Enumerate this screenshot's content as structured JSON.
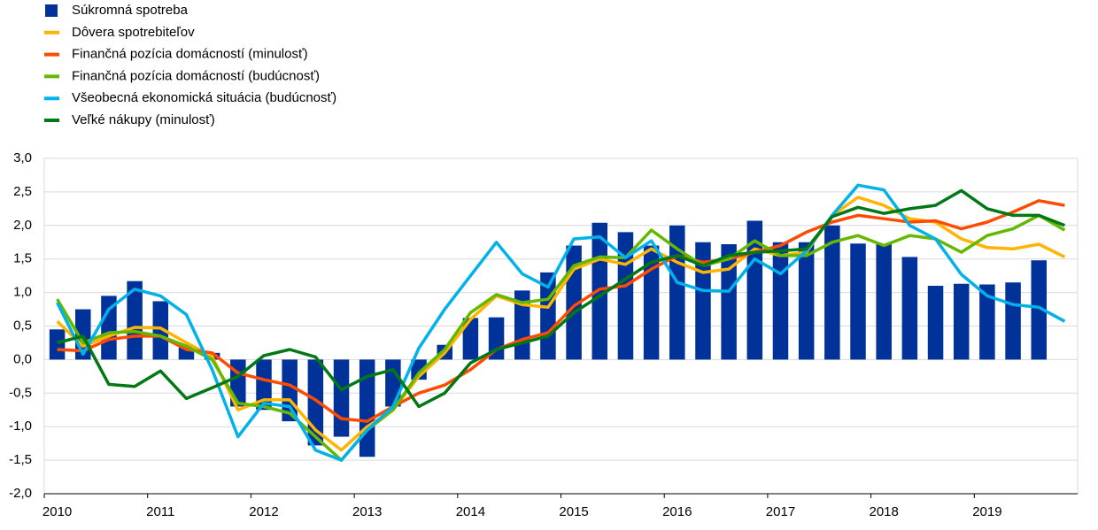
{
  "chart_data": {
    "type": "combo",
    "categories": [
      "2010",
      null,
      null,
      null,
      "2011",
      null,
      null,
      null,
      "2012",
      null,
      null,
      null,
      "2013",
      null,
      null,
      null,
      "2014",
      null,
      null,
      null,
      "2015",
      null,
      null,
      null,
      "2016",
      null,
      null,
      null,
      "2017",
      null,
      null,
      null,
      "2018",
      null,
      null,
      null,
      "2019",
      null,
      null,
      null
    ],
    "ylim": [
      -2,
      3
    ],
    "yticks": [
      {
        "value": -2,
        "label": "-2,0"
      },
      {
        "value": -1.5,
        "label": "-1,5"
      },
      {
        "value": -1,
        "label": "-1,0"
      },
      {
        "value": -0.5,
        "label": "-0,5"
      },
      {
        "value": 0,
        "label": "0,0"
      },
      {
        "value": 0.5,
        "label": "0,5"
      },
      {
        "value": 1,
        "label": "1,0"
      },
      {
        "value": 1.5,
        "label": "1,5"
      },
      {
        "value": 2,
        "label": "2,0"
      },
      {
        "value": 2.5,
        "label": "2,5"
      },
      {
        "value": 3,
        "label": "3,0"
      }
    ],
    "grid": true,
    "legend": "top-left",
    "series": [
      {
        "name": "Súkromná spotreba",
        "type": "bar",
        "color": "#003299",
        "values": [
          0.45,
          0.75,
          0.95,
          1.17,
          0.87,
          0.2,
          0.1,
          -0.7,
          -0.75,
          -0.92,
          -1.28,
          -1.15,
          -1.45,
          -0.7,
          -0.3,
          0.22,
          0.62,
          0.63,
          1.03,
          1.3,
          1.7,
          2.04,
          1.9,
          1.7,
          2.0,
          1.75,
          1.72,
          2.07,
          1.75,
          1.75,
          2.0,
          1.73,
          1.72,
          1.53,
          1.1,
          1.13,
          1.12,
          1.15,
          1.48,
          null
        ]
      },
      {
        "name": "Dôvera spotrebiteľov",
        "type": "line",
        "color": "#ffb400",
        "values": [
          0.57,
          0.2,
          0.35,
          0.48,
          0.47,
          0.25,
          0.05,
          -0.75,
          -0.6,
          -0.6,
          -1.05,
          -1.35,
          -1.0,
          -0.75,
          -0.25,
          0.1,
          0.6,
          0.95,
          0.82,
          0.78,
          1.35,
          1.5,
          1.42,
          1.65,
          1.45,
          1.3,
          1.35,
          1.65,
          1.55,
          1.6,
          2.15,
          2.42,
          2.3,
          2.1,
          2.05,
          1.8,
          1.67,
          1.65,
          1.72,
          1.53
        ]
      },
      {
        "name": "Finančná pozícia domácností (minulosť)",
        "type": "line",
        "color": "#ff4b00",
        "values": [
          0.15,
          0.13,
          0.3,
          0.35,
          0.35,
          0.15,
          0.1,
          -0.2,
          -0.3,
          -0.38,
          -0.6,
          -0.88,
          -0.92,
          -0.7,
          -0.5,
          -0.38,
          -0.15,
          0.15,
          0.3,
          0.4,
          0.8,
          1.05,
          1.1,
          1.35,
          1.55,
          1.45,
          1.5,
          1.6,
          1.7,
          1.9,
          2.05,
          2.15,
          2.1,
          2.05,
          2.07,
          1.95,
          2.05,
          2.2,
          2.37,
          2.3
        ]
      },
      {
        "name": "Finančná pozícia domácností (budúcnosť)",
        "type": "line",
        "color": "#65b800",
        "values": [
          0.9,
          0.25,
          0.4,
          0.42,
          0.35,
          0.2,
          0.0,
          -0.65,
          -0.7,
          -0.8,
          -1.15,
          -1.5,
          -1.05,
          -0.75,
          -0.2,
          0.15,
          0.7,
          0.97,
          0.85,
          0.9,
          1.4,
          1.53,
          1.52,
          1.93,
          1.65,
          1.4,
          1.5,
          1.77,
          1.55,
          1.55,
          1.75,
          1.85,
          1.7,
          1.85,
          1.8,
          1.6,
          1.85,
          1.95,
          2.15,
          1.93
        ]
      },
      {
        "name": "Všeobecná ekonomická situácia (budúcnosť)",
        "type": "line",
        "color": "#00b1ea",
        "values": [
          0.85,
          0.08,
          0.75,
          1.05,
          0.95,
          0.67,
          -0.15,
          -1.15,
          -0.65,
          -0.7,
          -1.35,
          -1.5,
          -1.05,
          -0.7,
          0.17,
          0.75,
          1.25,
          1.75,
          1.28,
          1.08,
          1.8,
          1.83,
          1.52,
          1.77,
          1.15,
          1.03,
          1.02,
          1.5,
          1.28,
          1.62,
          2.15,
          2.6,
          2.53,
          2.0,
          1.8,
          1.27,
          0.95,
          0.82,
          0.78,
          0.57
        ]
      },
      {
        "name": "Veľké nákupy (minulosť)",
        "type": "line",
        "color": "#007816",
        "values": [
          0.25,
          0.35,
          -0.37,
          -0.4,
          -0.17,
          -0.58,
          -0.42,
          -0.25,
          0.06,
          0.15,
          0.04,
          -0.45,
          -0.25,
          -0.15,
          -0.7,
          -0.5,
          -0.05,
          0.15,
          0.25,
          0.35,
          0.7,
          0.95,
          1.2,
          1.45,
          1.55,
          1.4,
          1.55,
          1.6,
          1.62,
          1.65,
          2.13,
          2.27,
          2.18,
          2.25,
          2.3,
          2.52,
          2.25,
          2.15,
          2.15,
          2.0
        ]
      }
    ]
  }
}
